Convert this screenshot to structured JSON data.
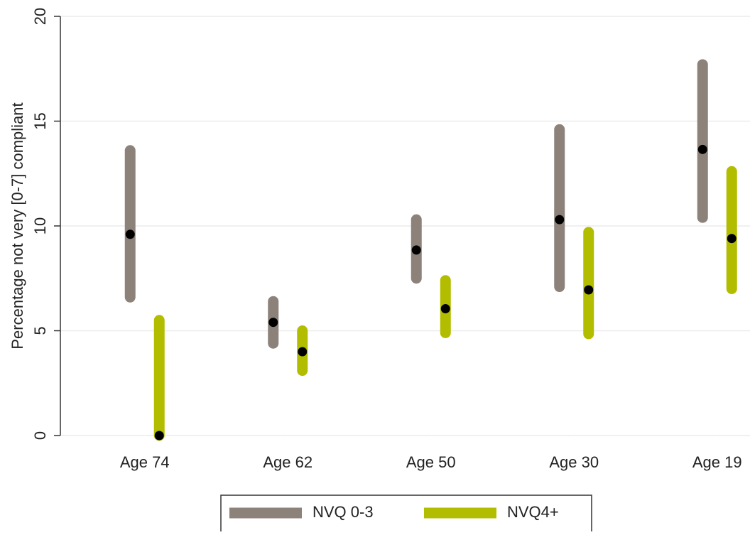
{
  "chart_data": {
    "type": "range",
    "y_label": "Percentage not very [0-7] compliant",
    "categories": [
      "Age 74",
      "Age 62",
      "Age 50",
      "Age 30",
      "Age 19"
    ],
    "series": [
      {
        "name": "NVQ 0-3",
        "color": "#8c827a",
        "values": [
          9.6,
          5.4,
          8.85,
          10.3,
          13.65
        ],
        "low": [
          6.6,
          4.4,
          7.5,
          7.1,
          10.4
        ],
        "high": [
          13.6,
          6.4,
          10.3,
          14.6,
          17.7
        ]
      },
      {
        "name": "NVQ4+",
        "color": "#b3bd00",
        "values": [
          0,
          4.0,
          6.05,
          6.95,
          9.4
        ],
        "low": [
          0,
          3.1,
          4.9,
          4.85,
          7.0
        ],
        "high": [
          5.5,
          5.0,
          7.4,
          9.7,
          12.6
        ]
      }
    ],
    "ylim": [
      0,
      20
    ],
    "yticks": [
      0,
      5,
      10,
      15,
      20
    ],
    "grid": true
  }
}
